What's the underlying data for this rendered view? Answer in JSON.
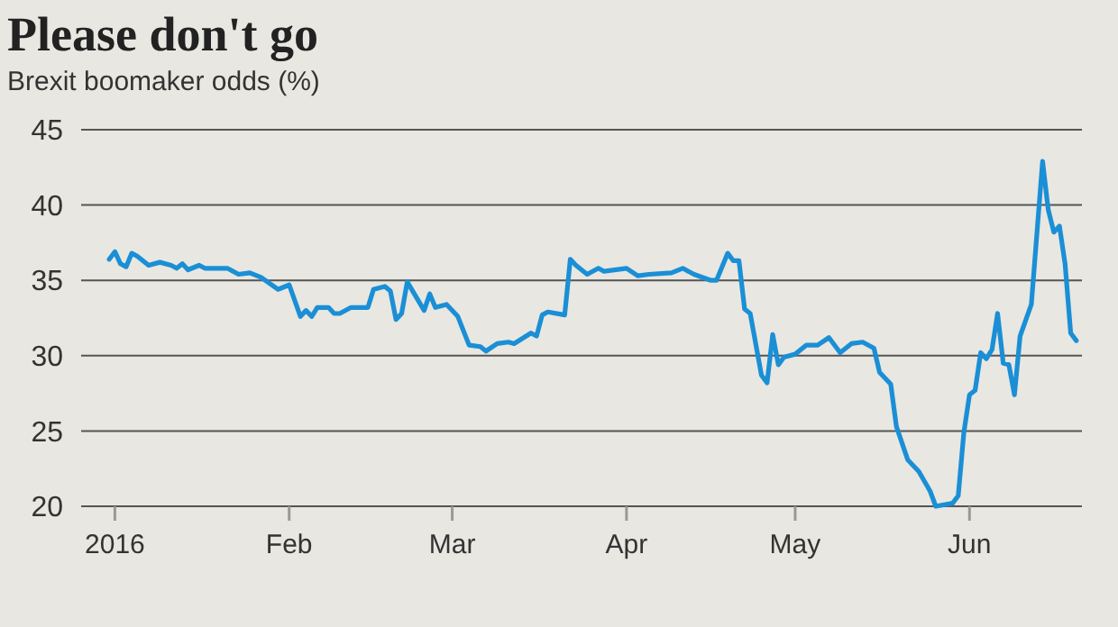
{
  "chart_data": {
    "type": "line",
    "title": "Please don't go",
    "subtitle": "Brexit boomaker odds (%)",
    "xlim": [
      "2015-12-26",
      "2016-06-21"
    ],
    "xticks": [
      {
        "value": "2016-01-01",
        "label": "2016"
      },
      {
        "value": "2016-02-01",
        "label": "Feb"
      },
      {
        "value": "2016-03-01",
        "label": "Mar"
      },
      {
        "value": "2016-04-01",
        "label": "Apr"
      },
      {
        "value": "2016-05-01",
        "label": "May"
      },
      {
        "value": "2016-06-01",
        "label": "Jun"
      }
    ],
    "ylim": [
      20,
      45
    ],
    "yticks": [
      20,
      25,
      30,
      35,
      40,
      45
    ],
    "grid": "y",
    "marker": "none",
    "line_style": "solid",
    "series": [
      {
        "color": "#1a8fd6",
        "x": [
          "2015-12-31",
          "2016-01-01",
          "2016-01-02",
          "2016-01-03",
          "2016-01-04",
          "2016-01-05",
          "2016-01-07",
          "2016-01-09",
          "2016-01-11",
          "2016-01-12",
          "2016-01-13",
          "2016-01-14",
          "2016-01-16",
          "2016-01-17",
          "2016-01-21",
          "2016-01-23",
          "2016-01-25",
          "2016-01-27",
          "2016-01-30",
          "2016-02-01",
          "2016-02-03",
          "2016-02-04",
          "2016-02-05",
          "2016-02-06",
          "2016-02-08",
          "2016-02-09",
          "2016-02-10",
          "2016-02-12",
          "2016-02-15",
          "2016-02-16",
          "2016-02-18",
          "2016-02-19",
          "2016-02-20",
          "2016-02-21",
          "2016-02-22",
          "2016-02-25",
          "2016-02-26",
          "2016-02-27",
          "2016-02-29",
          "2016-03-02",
          "2016-03-04",
          "2016-03-06",
          "2016-03-07",
          "2016-03-09",
          "2016-03-11",
          "2016-03-12",
          "2016-03-15",
          "2016-03-16",
          "2016-03-17",
          "2016-03-18",
          "2016-03-21",
          "2016-03-22",
          "2016-03-23",
          "2016-03-25",
          "2016-03-27",
          "2016-03-28",
          "2016-04-01",
          "2016-04-03",
          "2016-04-05",
          "2016-04-09",
          "2016-04-11",
          "2016-04-13",
          "2016-04-16",
          "2016-04-17",
          "2016-04-19",
          "2016-04-20",
          "2016-04-21",
          "2016-04-22",
          "2016-04-23",
          "2016-04-25",
          "2016-04-26",
          "2016-04-27",
          "2016-04-28",
          "2016-04-29",
          "2016-05-01",
          "2016-05-03",
          "2016-05-05",
          "2016-05-07",
          "2016-05-09",
          "2016-05-11",
          "2016-05-13",
          "2016-05-15",
          "2016-05-16",
          "2016-05-18",
          "2016-05-19",
          "2016-05-21",
          "2016-05-23",
          "2016-05-25",
          "2016-05-26",
          "2016-05-29",
          "2016-05-30",
          "2016-05-31",
          "2016-06-01",
          "2016-06-02",
          "2016-06-03",
          "2016-06-04",
          "2016-06-05",
          "2016-06-06",
          "2016-06-07",
          "2016-06-08",
          "2016-06-09",
          "2016-06-10",
          "2016-06-12",
          "2016-06-14",
          "2016-06-15",
          "2016-06-16",
          "2016-06-17",
          "2016-06-18",
          "2016-06-19",
          "2016-06-20"
        ],
        "values": [
          36.4,
          36.9,
          36.1,
          35.9,
          36.8,
          36.6,
          36.0,
          36.2,
          36.0,
          35.8,
          36.1,
          35.7,
          36.0,
          35.8,
          35.8,
          35.4,
          35.5,
          35.2,
          34.4,
          34.7,
          32.6,
          33.0,
          32.6,
          33.2,
          33.2,
          32.8,
          32.8,
          33.2,
          33.2,
          34.4,
          34.6,
          34.3,
          32.4,
          32.8,
          34.9,
          33.0,
          34.1,
          33.2,
          33.4,
          32.6,
          30.7,
          30.6,
          30.3,
          30.8,
          30.9,
          30.8,
          31.5,
          31.3,
          32.7,
          32.9,
          32.7,
          36.4,
          36.0,
          35.4,
          35.8,
          35.6,
          35.8,
          35.3,
          35.4,
          35.5,
          35.8,
          35.4,
          35.0,
          35.0,
          36.8,
          36.3,
          36.3,
          33.1,
          32.8,
          28.7,
          28.2,
          31.4,
          29.4,
          29.9,
          30.1,
          30.7,
          30.7,
          31.2,
          30.2,
          30.8,
          30.9,
          30.5,
          28.9,
          28.1,
          25.3,
          23.1,
          22.3,
          21.0,
          20.0,
          20.2,
          20.7,
          24.9,
          27.4,
          27.7,
          30.2,
          29.8,
          30.4,
          32.8,
          29.5,
          29.4,
          27.4,
          31.3,
          33.4,
          42.9,
          39.7,
          38.2,
          38.6,
          36.1,
          31.5,
          31.0
        ]
      }
    ]
  }
}
